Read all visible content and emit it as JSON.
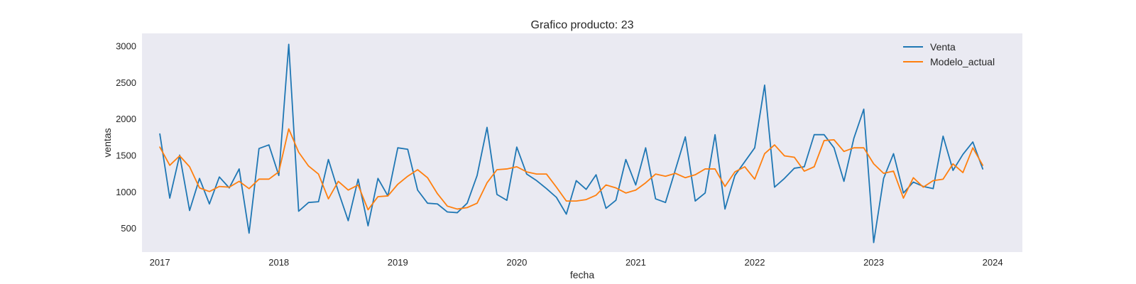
{
  "chart_data": {
    "type": "line",
    "title": "Grafico producto: 23",
    "xlabel": "fecha",
    "ylabel": "ventas",
    "x_start": "2017-01",
    "x_frequency": "monthly",
    "xlim": [
      2016.85,
      2024.25
    ],
    "ylim": [
      170,
      3170
    ],
    "xticks": [
      2017,
      2018,
      2019,
      2020,
      2021,
      2022,
      2023,
      2024
    ],
    "yticks": [
      500,
      1000,
      1500,
      2000,
      2500,
      3000
    ],
    "grid": false,
    "background": "#eaeaf2",
    "legend_position": "top-right",
    "series": [
      {
        "name": "Venta",
        "color": "#1f77b4",
        "values": [
          1790,
          910,
          1500,
          740,
          1180,
          830,
          1200,
          1050,
          1310,
          430,
          1590,
          1640,
          1220,
          3020,
          730,
          850,
          860,
          1440,
          1000,
          600,
          1170,
          530,
          1180,
          940,
          1600,
          1580,
          1020,
          840,
          830,
          720,
          710,
          840,
          1220,
          1880,
          960,
          880,
          1610,
          1240,
          1150,
          1040,
          920,
          690,
          1150,
          1030,
          1230,
          770,
          880,
          1440,
          1090,
          1600,
          900,
          850,
          1300,
          1750,
          870,
          980,
          1780,
          760,
          1220,
          1410,
          1600,
          2460,
          1060,
          1180,
          1320,
          1340,
          1780,
          1780,
          1600,
          1140,
          1730,
          2130,
          300,
          1180,
          1520,
          980,
          1130,
          1070,
          1040,
          1760,
          1290,
          1510,
          1680,
          1310
        ]
      },
      {
        "name": "Modelo_actual",
        "color": "#ff7f0e",
        "values": [
          1610,
          1360,
          1490,
          1340,
          1050,
          1000,
          1070,
          1060,
          1140,
          1040,
          1170,
          1170,
          1270,
          1860,
          1540,
          1350,
          1240,
          900,
          1140,
          1020,
          1090,
          750,
          930,
          940,
          1100,
          1210,
          1300,
          1190,
          970,
          800,
          760,
          780,
          840,
          1120,
          1300,
          1310,
          1340,
          1270,
          1240,
          1240,
          1060,
          870,
          870,
          890,
          950,
          1090,
          1050,
          980,
          1020,
          1120,
          1240,
          1210,
          1250,
          1190,
          1230,
          1310,
          1310,
          1070,
          1270,
          1340,
          1170,
          1520,
          1640,
          1490,
          1470,
          1280,
          1340,
          1700,
          1710,
          1550,
          1600,
          1600,
          1380,
          1250,
          1280,
          910,
          1190,
          1060,
          1150,
          1170,
          1380,
          1260,
          1600,
          1360
        ]
      }
    ]
  }
}
